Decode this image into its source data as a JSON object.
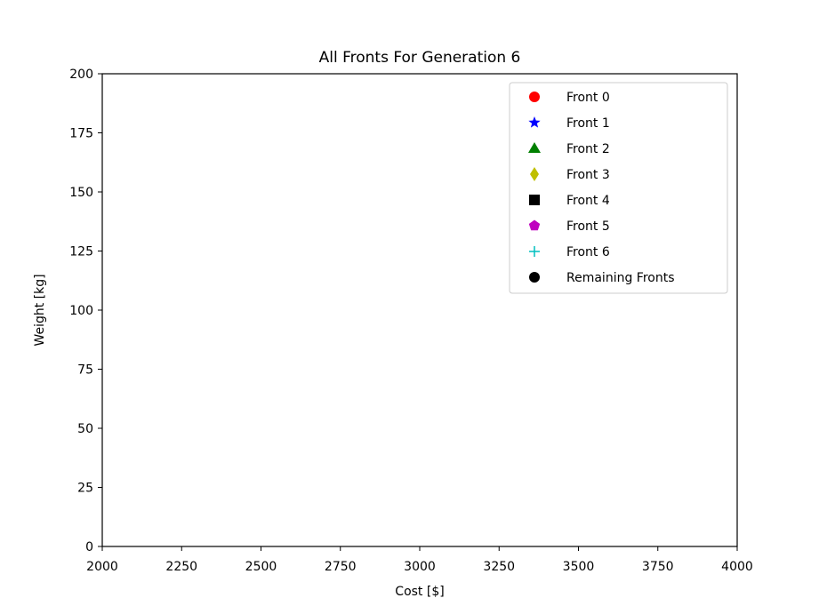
{
  "chart_data": {
    "type": "scatter",
    "title": "All Fronts For Generation 6",
    "xlabel": "Cost [$]",
    "ylabel": "Weight [kg]",
    "xlim": [
      2000,
      4000
    ],
    "ylim": [
      0,
      200
    ],
    "xticks": [
      2000,
      2250,
      2500,
      2750,
      3000,
      3250,
      3500,
      3750,
      4000
    ],
    "yticks": [
      0,
      25,
      50,
      75,
      100,
      125,
      150,
      175,
      200
    ],
    "grid": false,
    "legend_position": "top-right",
    "series": [
      {
        "name": "Front 0",
        "marker": "circle",
        "color": "#ff0000",
        "points": []
      },
      {
        "name": "Front 1",
        "marker": "star",
        "color": "#0000ff",
        "points": []
      },
      {
        "name": "Front 2",
        "marker": "triangle",
        "color": "#008000",
        "points": []
      },
      {
        "name": "Front 3",
        "marker": "thin-diamond",
        "color": "#bfbf00",
        "points": []
      },
      {
        "name": "Front 4",
        "marker": "square",
        "color": "#000000",
        "points": []
      },
      {
        "name": "Front 5",
        "marker": "pentagon",
        "color": "#bf00bf",
        "points": []
      },
      {
        "name": "Front 6",
        "marker": "plus",
        "color": "#00bfbf",
        "points": []
      },
      {
        "name": "Remaining Fronts",
        "marker": "circle",
        "color": "#000000",
        "points": []
      }
    ]
  }
}
